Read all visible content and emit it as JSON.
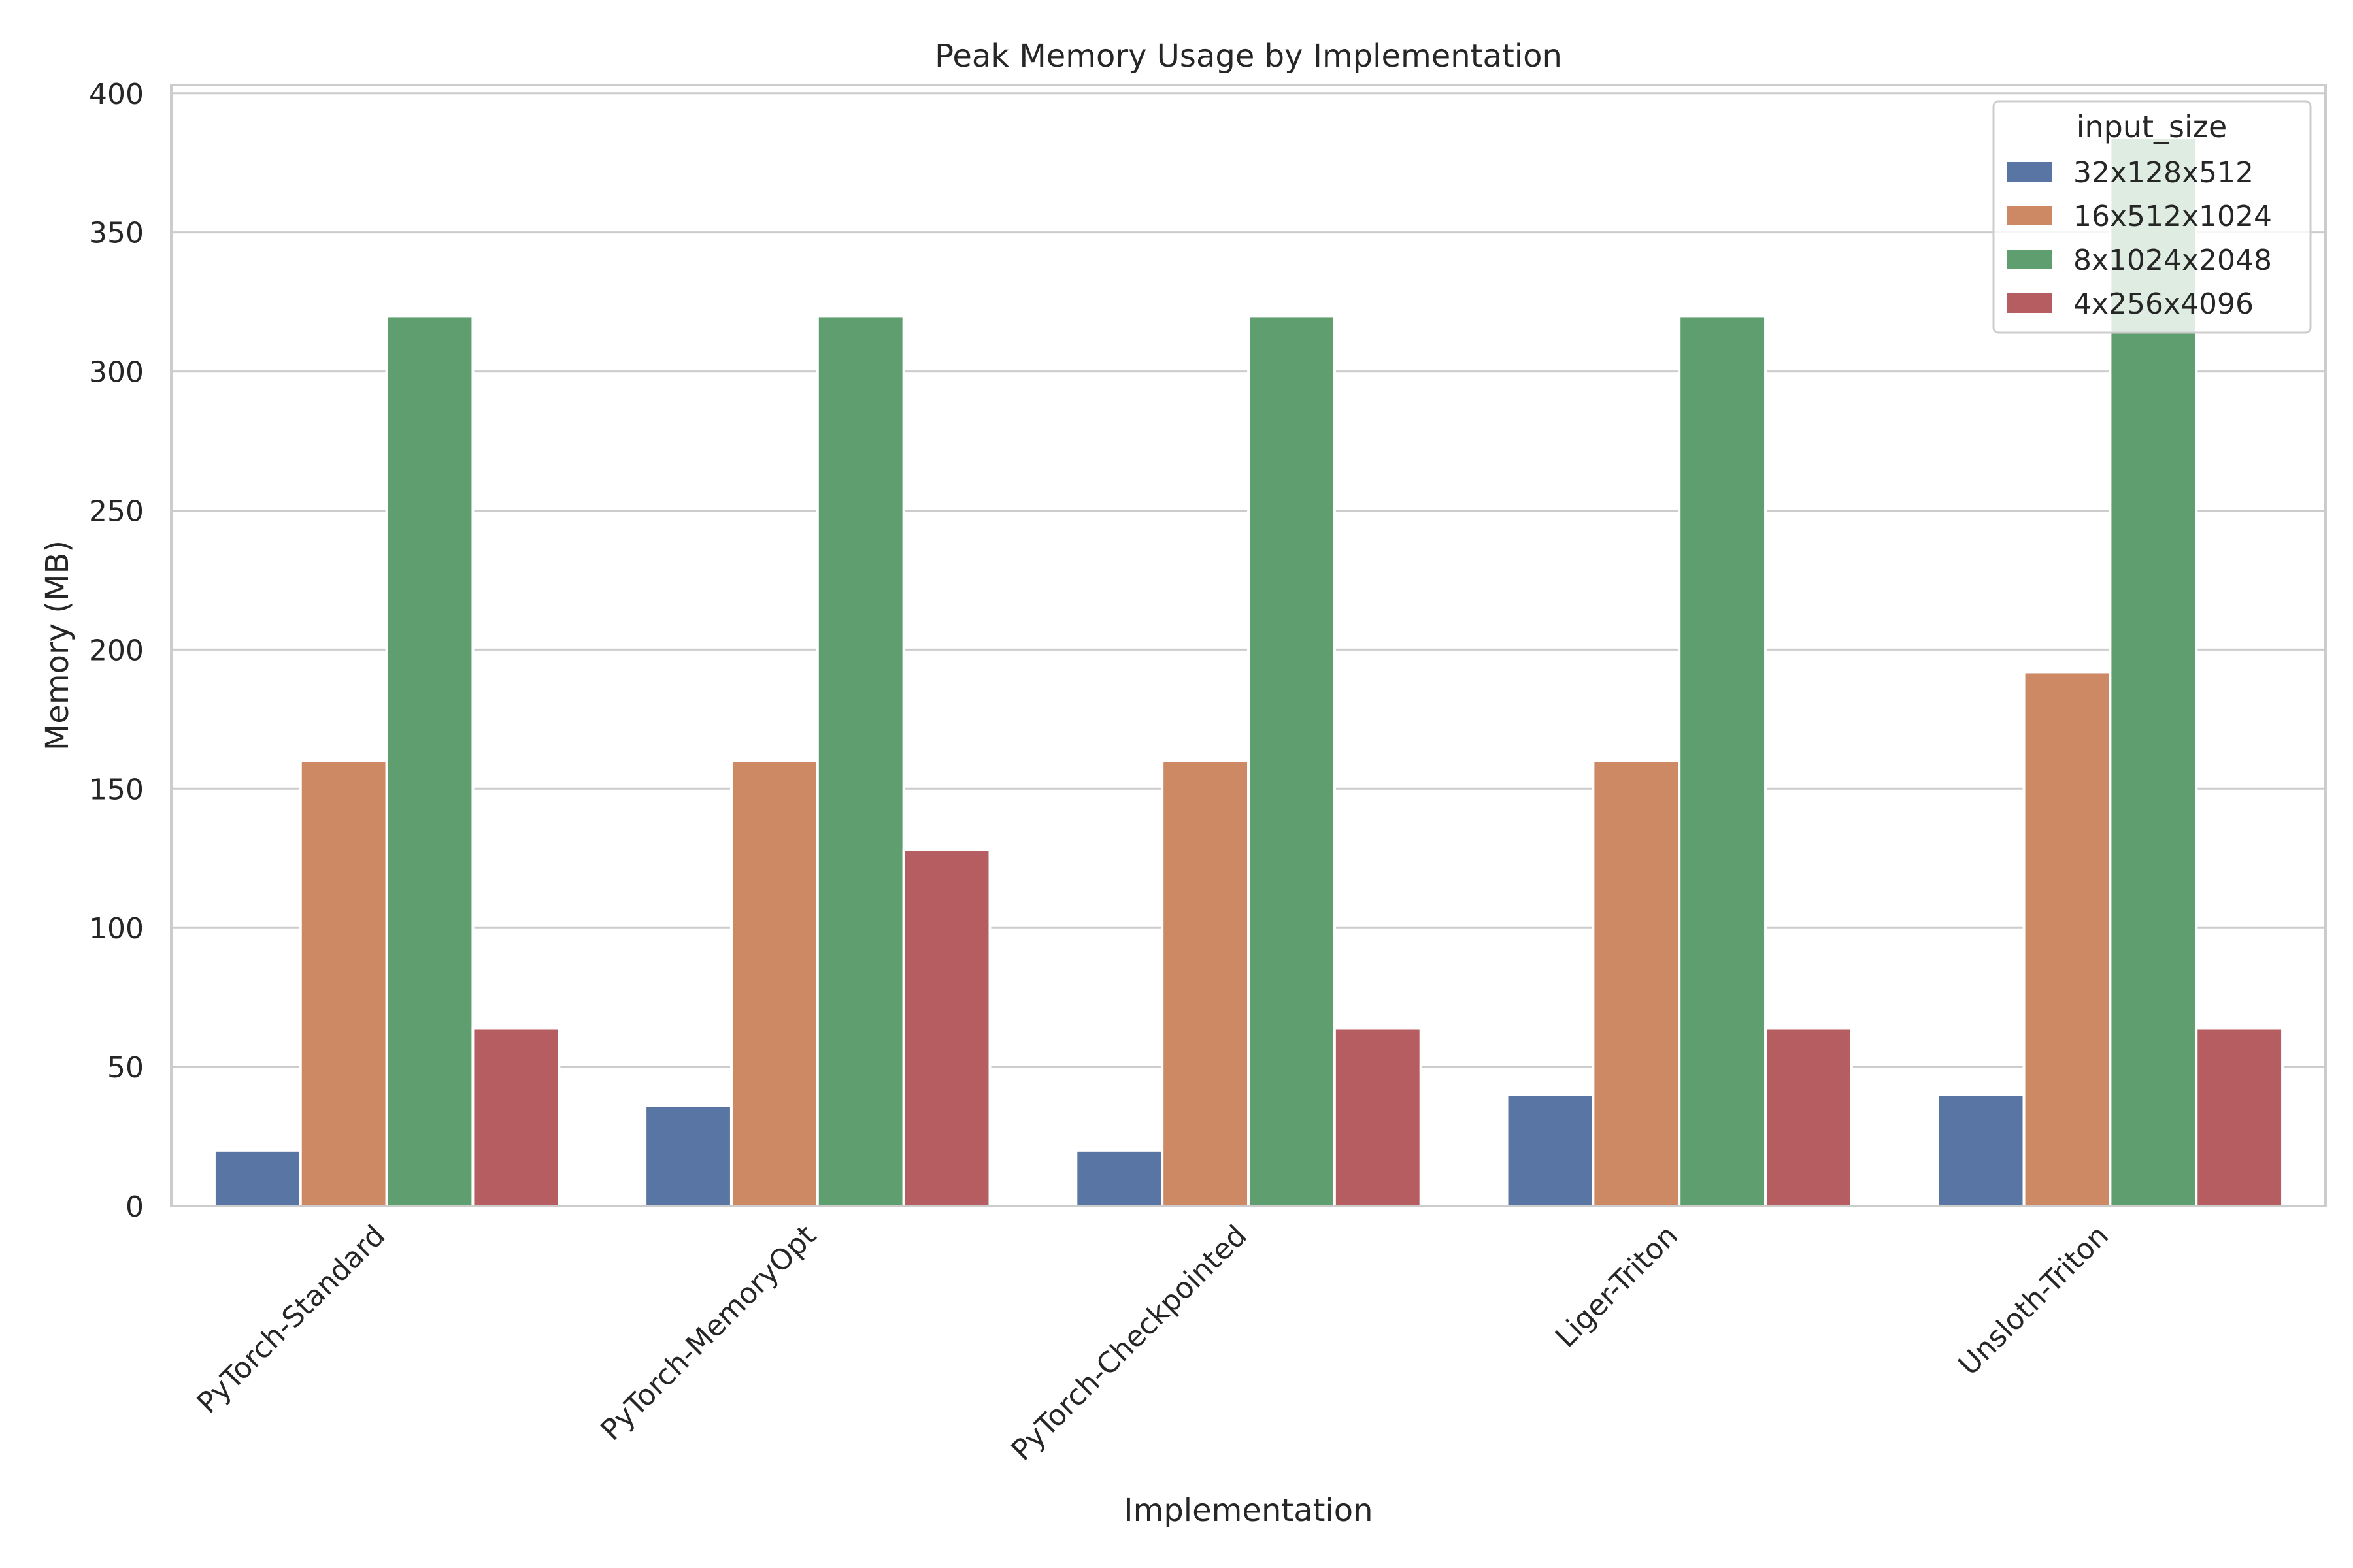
{
  "chart_data": {
    "type": "bar",
    "title": "Peak Memory Usage by Implementation",
    "xlabel": "Implementation",
    "ylabel": "Memory (MB)",
    "categories": [
      "PyTorch-Standard",
      "PyTorch-MemoryOpt",
      "PyTorch-Checkpointed",
      "Liger-Triton",
      "Unsloth-Triton"
    ],
    "series": [
      {
        "name": "32x128x512",
        "color": "#5975a4",
        "values": [
          20,
          36,
          20,
          40,
          40
        ]
      },
      {
        "name": "16x512x1024",
        "color": "#cc8963",
        "values": [
          160,
          160,
          160,
          160,
          192
        ]
      },
      {
        "name": "8x1024x2048",
        "color": "#5f9e6e",
        "values": [
          320,
          320,
          320,
          320,
          384
        ]
      },
      {
        "name": "4x256x4096",
        "color": "#b55d60",
        "values": [
          64,
          128,
          64,
          64,
          64
        ]
      }
    ],
    "ylim": [
      0,
      403
    ],
    "yticks": [
      0,
      50,
      100,
      150,
      200,
      250,
      300,
      350,
      400
    ],
    "grid": "horizontal",
    "legend": {
      "title": "input_size",
      "placement": "top-right"
    }
  }
}
